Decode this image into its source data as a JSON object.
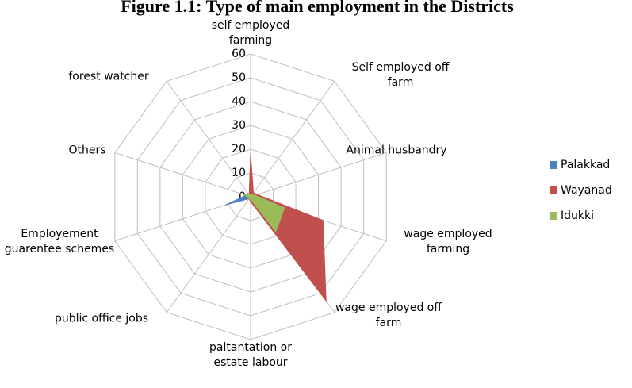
{
  "chart_data": {
    "type": "radar",
    "title": "Figure 1.1: Type of main employment in the Districts",
    "categories": [
      "self employed farming",
      "Self employed off farm",
      "Animal husbandry",
      "wage employed farming",
      "wage employed off farm",
      "paltantation or estate labour",
      "public office jobs",
      "Employement guarentee schemes",
      "Others",
      "forest watcher"
    ],
    "series": [
      {
        "name": "Palakkad",
        "color": "#4f81bd",
        "values": [
          1,
          1,
          1,
          1,
          3,
          1,
          1,
          11,
          2,
          1
        ]
      },
      {
        "name": "Wayanad",
        "color": "#c0504d",
        "values": [
          18,
          2,
          3,
          32,
          54,
          2,
          1,
          2,
          1,
          1
        ]
      },
      {
        "name": "Idukki",
        "color": "#9bbb59",
        "values": [
          1,
          1,
          2,
          15,
          18,
          1,
          1,
          1,
          3,
          1
        ]
      }
    ],
    "ylim": [
      0,
      60
    ],
    "yticks": [
      0,
      10,
      20,
      30,
      40,
      50,
      60
    ],
    "grid": true,
    "legend": "right"
  }
}
